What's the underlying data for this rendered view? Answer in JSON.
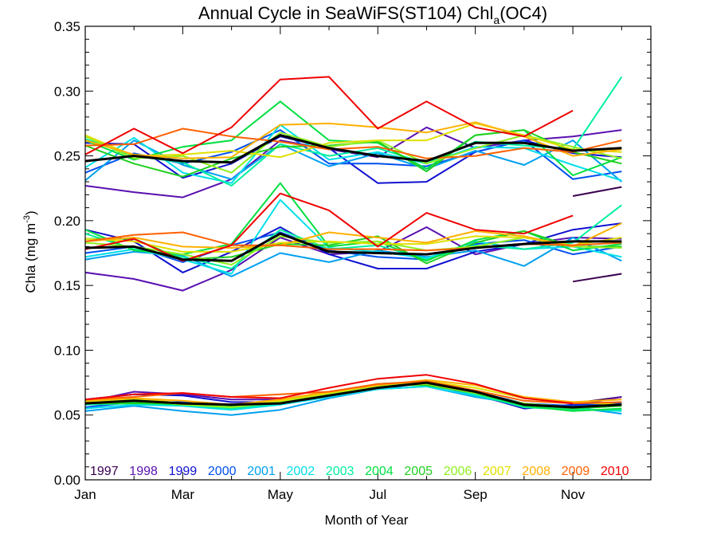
{
  "chart_data": {
    "type": "line",
    "title_main": "Annual Cycle in SeaWiFS(ST104) Chl",
    "title_sub": "a",
    "title_end": "(OC4)",
    "xlabel": "Month of Year",
    "ylabel_main": "Chla (mg m",
    "ylabel_sup": "-3",
    "ylabel_end": ")",
    "xlim": [
      1,
      12.6
    ],
    "ylim": [
      0,
      0.35
    ],
    "x_ticks": [
      {
        "value": 1,
        "label": "Jan"
      },
      {
        "value": 3,
        "label": "Mar"
      },
      {
        "value": 5,
        "label": "May"
      },
      {
        "value": 7,
        "label": "Jul"
      },
      {
        "value": 9,
        "label": "Sep"
      },
      {
        "value": 11,
        "label": "Nov"
      }
    ],
    "y_ticks": [
      "0.00",
      "0.05",
      "0.10",
      "0.15",
      "0.20",
      "0.25",
      "0.30",
      "0.35"
    ],
    "x": [
      1,
      2,
      3,
      4,
      5,
      6,
      7,
      8,
      9,
      10,
      11,
      12
    ],
    "series": [
      {
        "name": "1997",
        "color": "#3a0050",
        "upper": [
          null,
          null,
          null,
          null,
          null,
          null,
          null,
          null,
          null,
          null,
          0.219,
          0.226
        ],
        "median": [
          null,
          null,
          null,
          null,
          null,
          null,
          null,
          null,
          null,
          null,
          0.153,
          0.159
        ],
        "lower": [
          null,
          null,
          null,
          null,
          null,
          null,
          null,
          null,
          null,
          null,
          0.059,
          0.064
        ]
      },
      {
        "name": "1998",
        "color": "#5a10b0",
        "upper": [
          0.227,
          0.222,
          0.218,
          0.232,
          0.262,
          0.255,
          0.249,
          0.272,
          0.256,
          0.262,
          0.265,
          0.27
        ],
        "median": [
          0.16,
          0.155,
          0.146,
          0.162,
          0.187,
          0.174,
          0.176,
          0.195,
          0.174,
          0.182,
          0.187,
          0.186
        ],
        "lower": [
          0.06,
          0.068,
          0.066,
          0.062,
          0.062,
          0.067,
          0.072,
          0.075,
          0.065,
          0.056,
          0.057,
          0.064
        ]
      },
      {
        "name": "1999",
        "color": "#1010d0",
        "upper": [
          0.26,
          0.259,
          0.233,
          0.244,
          0.265,
          0.256,
          0.229,
          0.23,
          0.253,
          0.262,
          0.252,
          0.249
        ],
        "median": [
          0.193,
          0.184,
          0.16,
          0.176,
          0.195,
          0.174,
          0.163,
          0.163,
          0.176,
          0.182,
          0.193,
          0.198
        ],
        "lower": [
          0.062,
          0.066,
          0.065,
          0.06,
          0.06,
          0.068,
          0.072,
          0.074,
          0.066,
          0.055,
          0.058,
          0.06
        ]
      },
      {
        "name": "2000",
        "color": "#0050f0",
        "upper": [
          0.237,
          0.252,
          0.244,
          0.253,
          0.27,
          0.244,
          0.244,
          0.242,
          0.253,
          0.262,
          0.232,
          0.238
        ],
        "median": [
          0.175,
          0.18,
          0.168,
          0.181,
          0.191,
          0.177,
          0.172,
          0.17,
          0.182,
          0.185,
          0.174,
          0.18
        ],
        "lower": [
          0.056,
          0.06,
          0.06,
          0.056,
          0.059,
          0.066,
          0.07,
          0.075,
          0.068,
          0.059,
          0.057,
          0.059
        ]
      },
      {
        "name": "2001",
        "color": "#00a0f0",
        "upper": [
          0.231,
          0.262,
          0.243,
          0.232,
          0.259,
          0.242,
          0.252,
          0.24,
          0.254,
          0.243,
          0.262,
          0.23
        ],
        "median": [
          0.17,
          0.176,
          0.173,
          0.157,
          0.175,
          0.168,
          0.177,
          0.172,
          0.177,
          0.165,
          0.187,
          0.169
        ],
        "lower": [
          0.053,
          0.057,
          0.053,
          0.05,
          0.054,
          0.063,
          0.07,
          0.072,
          0.064,
          0.058,
          0.056,
          0.051
        ]
      },
      {
        "name": "2002",
        "color": "#00e0e8",
        "upper": [
          0.241,
          0.264,
          0.237,
          0.229,
          0.274,
          0.247,
          0.253,
          0.244,
          0.257,
          0.256,
          0.243,
          0.231
        ],
        "median": [
          0.172,
          0.178,
          0.17,
          0.159,
          0.216,
          0.179,
          0.176,
          0.171,
          0.184,
          0.178,
          0.18,
          0.172
        ],
        "lower": [
          0.055,
          0.058,
          0.057,
          0.054,
          0.058,
          0.064,
          0.07,
          0.072,
          0.065,
          0.057,
          0.055,
          0.053
        ]
      },
      {
        "name": "2003",
        "color": "#00f0a0",
        "upper": [
          0.263,
          0.25,
          0.245,
          0.227,
          0.259,
          0.25,
          0.256,
          0.244,
          0.261,
          0.258,
          0.255,
          0.311
        ],
        "median": [
          0.19,
          0.178,
          0.172,
          0.163,
          0.193,
          0.178,
          0.181,
          0.17,
          0.181,
          0.178,
          0.183,
          0.212
        ],
        "lower": [
          0.058,
          0.059,
          0.058,
          0.055,
          0.059,
          0.066,
          0.073,
          0.074,
          0.066,
          0.056,
          0.054,
          0.054
        ]
      },
      {
        "name": "2004",
        "color": "#00e040",
        "upper": [
          0.262,
          0.247,
          0.257,
          0.262,
          0.292,
          0.262,
          0.26,
          0.24,
          0.266,
          0.27,
          0.235,
          0.249
        ],
        "median": [
          0.193,
          0.177,
          0.174,
          0.182,
          0.229,
          0.18,
          0.184,
          0.169,
          0.185,
          0.192,
          0.177,
          0.182
        ],
        "lower": [
          0.059,
          0.06,
          0.058,
          0.057,
          0.06,
          0.067,
          0.074,
          0.076,
          0.067,
          0.057,
          0.053,
          0.055
        ]
      },
      {
        "name": "2005",
        "color": "#20d020",
        "upper": [
          0.258,
          0.244,
          0.234,
          0.248,
          0.257,
          0.258,
          0.261,
          0.238,
          0.266,
          0.27,
          0.253,
          0.244
        ],
        "median": [
          0.186,
          0.186,
          0.17,
          0.172,
          0.182,
          0.181,
          0.188,
          0.167,
          0.183,
          0.192,
          0.18,
          0.18
        ],
        "lower": [
          0.059,
          0.059,
          0.059,
          0.057,
          0.059,
          0.066,
          0.073,
          0.073,
          0.067,
          0.058,
          0.055,
          0.057
        ]
      },
      {
        "name": "2006",
        "color": "#90f020",
        "upper": [
          0.265,
          0.248,
          0.25,
          0.237,
          0.268,
          0.257,
          0.262,
          0.244,
          0.256,
          0.266,
          0.257,
          0.248
        ],
        "median": [
          0.183,
          0.18,
          0.174,
          0.166,
          0.188,
          0.183,
          0.184,
          0.177,
          0.18,
          0.187,
          0.18,
          0.179
        ],
        "lower": [
          0.06,
          0.062,
          0.058,
          0.056,
          0.06,
          0.066,
          0.072,
          0.074,
          0.067,
          0.059,
          0.056,
          0.058
        ]
      },
      {
        "name": "2007",
        "color": "#e0e000",
        "upper": [
          0.266,
          0.25,
          0.251,
          0.254,
          0.249,
          0.26,
          0.262,
          0.262,
          0.275,
          0.266,
          0.255,
          0.253
        ],
        "median": [
          0.186,
          0.184,
          0.176,
          0.176,
          0.183,
          0.184,
          0.182,
          0.182,
          0.188,
          0.187,
          0.181,
          0.187
        ],
        "lower": [
          0.06,
          0.063,
          0.059,
          0.058,
          0.061,
          0.067,
          0.073,
          0.076,
          0.071,
          0.063,
          0.06,
          0.058
        ]
      },
      {
        "name": "2008",
        "color": "#ffb000",
        "upper": [
          0.262,
          0.251,
          0.248,
          0.249,
          0.274,
          0.275,
          0.272,
          0.268,
          0.276,
          0.265,
          0.25,
          0.255
        ],
        "median": [
          0.184,
          0.187,
          0.18,
          0.179,
          0.181,
          0.191,
          0.187,
          0.183,
          0.192,
          0.188,
          0.18,
          0.198
        ],
        "lower": [
          0.061,
          0.063,
          0.061,
          0.058,
          0.062,
          0.068,
          0.073,
          0.077,
          0.073,
          0.064,
          0.06,
          0.062
        ]
      },
      {
        "name": "2009",
        "color": "#ff6000",
        "upper": [
          0.258,
          0.259,
          0.271,
          0.265,
          0.261,
          0.255,
          0.257,
          0.248,
          0.25,
          0.256,
          0.253,
          0.262
        ],
        "median": [
          0.184,
          0.189,
          0.191,
          0.181,
          0.181,
          0.178,
          0.178,
          0.177,
          0.179,
          0.182,
          0.181,
          0.183
        ],
        "lower": [
          0.062,
          0.064,
          0.067,
          0.064,
          0.066,
          0.068,
          0.074,
          0.076,
          0.069,
          0.061,
          0.059,
          0.06
        ]
      },
      {
        "name": "2010",
        "color": "#f00000",
        "upper": [
          0.251,
          0.271,
          0.252,
          0.272,
          0.309,
          0.311,
          0.271,
          0.292,
          0.272,
          0.265,
          0.285,
          null
        ],
        "median": [
          0.178,
          0.186,
          0.169,
          0.181,
          0.221,
          0.208,
          0.18,
          0.206,
          0.193,
          0.19,
          0.204,
          null
        ],
        "lower": [
          0.062,
          0.066,
          0.067,
          0.064,
          0.063,
          0.071,
          0.078,
          0.081,
          0.074,
          0.063,
          0.059,
          null
        ]
      }
    ],
    "mean_series": {
      "color": "#000000",
      "upper": [
        0.246,
        0.25,
        0.246,
        0.245,
        0.266,
        0.256,
        0.25,
        0.246,
        0.26,
        0.26,
        0.254,
        0.256
      ],
      "median": [
        0.179,
        0.18,
        0.17,
        0.169,
        0.19,
        0.176,
        0.175,
        0.174,
        0.179,
        0.182,
        0.184,
        0.184
      ],
      "lower": [
        0.059,
        0.061,
        0.059,
        0.058,
        0.059,
        0.065,
        0.071,
        0.075,
        0.068,
        0.058,
        0.056,
        0.058
      ]
    }
  }
}
